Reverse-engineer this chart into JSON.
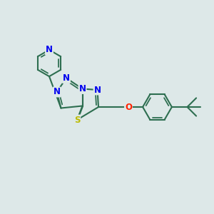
{
  "bg_color": "#dde8e8",
  "bond_color": "#2d6e50",
  "bond_width": 1.5,
  "N_color": "#0000ee",
  "S_color": "#bbbb00",
  "O_color": "#ff2200",
  "font_size": 8.5,
  "figsize": [
    3.0,
    3.0
  ],
  "dpi": 100,
  "xlim": [
    0,
    10
  ],
  "ylim": [
    0,
    10
  ]
}
